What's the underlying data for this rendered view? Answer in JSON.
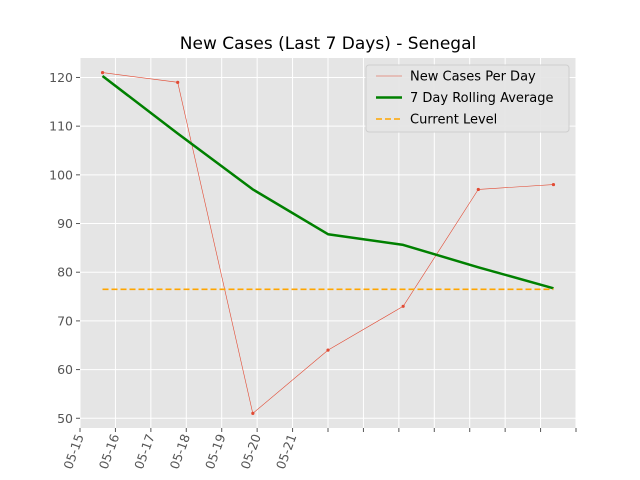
{
  "chart_data": {
    "type": "line",
    "title": "New Cases (Last 7 Days) - Senegal",
    "xlabel": "",
    "ylabel": "",
    "x_tick_labels": [
      "05-15",
      "05-16",
      "05-17",
      "05-18",
      "05-19",
      "05-20",
      "05-21"
    ],
    "x": [
      0,
      1,
      2,
      3,
      4,
      5,
      6
    ],
    "xlim": [
      -0.3,
      6.3
    ],
    "ylim": [
      48,
      124
    ],
    "y_ticks": [
      50,
      60,
      70,
      80,
      90,
      100,
      110,
      120
    ],
    "grid": true,
    "legend_position": "top-right",
    "series": [
      {
        "name": "New Cases Per Day",
        "style": "thin-line-with-markers",
        "color": "#e24a33",
        "values": [
          121,
          119,
          51,
          64,
          73,
          97,
          98
        ]
      },
      {
        "name": "7 Day Rolling Average",
        "style": "thick-line",
        "color": "#008000",
        "values": [
          120.3,
          108.5,
          97.0,
          87.8,
          85.6,
          81.0,
          76.7
        ]
      },
      {
        "name": "Current Level",
        "style": "dashed",
        "color": "#ffa500",
        "values": [
          76.5,
          76.5,
          76.5,
          76.5,
          76.5,
          76.5,
          76.5
        ]
      }
    ]
  }
}
